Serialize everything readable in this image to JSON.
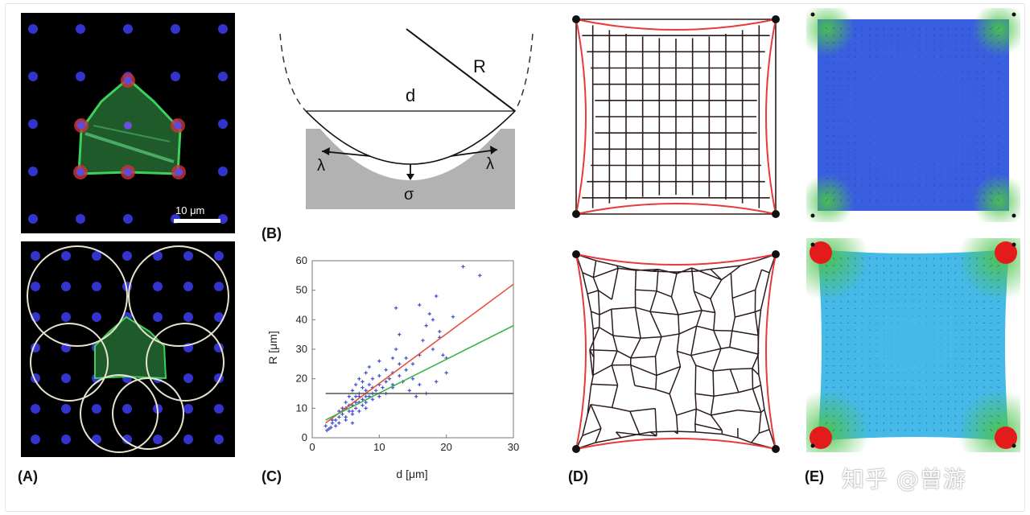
{
  "figure": {
    "panel_labels": [
      "(A)",
      "(B)",
      "(C)",
      "(D)",
      "(E)"
    ],
    "panel_a": {
      "scale_bar_text": "10 μm"
    },
    "panel_b": {
      "labels": {
        "R": "R",
        "d": "d",
        "lambda_left": "λ",
        "lambda_right": "λ",
        "sigma": "σ"
      }
    },
    "watermark": "知乎 @曾游"
  },
  "chart_data": {
    "type": "scatter",
    "xlabel": "d [μm]",
    "ylabel": "R [μm]",
    "xlim": [
      0,
      30
    ],
    "ylim": [
      0,
      60
    ],
    "xticks": [
      0,
      10,
      20,
      30
    ],
    "yticks": [
      0,
      10,
      20,
      30,
      40,
      50,
      60
    ],
    "points": [
      [
        2,
        4
      ],
      [
        2.5,
        3
      ],
      [
        3,
        5
      ],
      [
        3,
        6
      ],
      [
        3.5,
        4
      ],
      [
        4,
        7
      ],
      [
        4,
        9
      ],
      [
        4.5,
        8
      ],
      [
        5,
        6
      ],
      [
        5,
        10
      ],
      [
        5,
        12
      ],
      [
        5.5,
        9
      ],
      [
        5.5,
        14
      ],
      [
        6,
        8
      ],
      [
        6,
        11
      ],
      [
        6,
        13
      ],
      [
        6,
        16
      ],
      [
        6.5,
        10
      ],
      [
        6.5,
        12
      ],
      [
        6.5,
        18
      ],
      [
        7,
        9
      ],
      [
        7,
        14
      ],
      [
        7,
        15
      ],
      [
        7,
        20
      ],
      [
        7.5,
        11
      ],
      [
        7.5,
        13
      ],
      [
        7.5,
        17
      ],
      [
        8,
        10
      ],
      [
        8,
        12
      ],
      [
        8,
        16
      ],
      [
        8,
        22
      ],
      [
        8.5,
        14
      ],
      [
        8.5,
        18
      ],
      [
        9,
        13
      ],
      [
        9,
        15
      ],
      [
        9,
        20
      ],
      [
        9.5,
        16
      ],
      [
        10,
        14
      ],
      [
        10,
        18
      ],
      [
        10,
        21
      ],
      [
        10.5,
        17
      ],
      [
        11,
        15
      ],
      [
        11,
        19
      ],
      [
        11,
        23
      ],
      [
        11.5,
        20
      ],
      [
        12,
        18
      ],
      [
        12,
        22
      ],
      [
        12,
        27
      ],
      [
        12.5,
        44
      ],
      [
        12.5,
        30
      ],
      [
        13,
        21
      ],
      [
        13,
        25
      ],
      [
        13,
        35
      ],
      [
        13.5,
        19
      ],
      [
        14,
        23
      ],
      [
        14,
        27
      ],
      [
        15,
        20
      ],
      [
        15,
        25
      ],
      [
        15.5,
        14
      ],
      [
        16,
        28
      ],
      [
        16,
        45
      ],
      [
        16.5,
        33
      ],
      [
        17,
        15
      ],
      [
        17,
        38
      ],
      [
        17.5,
        42
      ],
      [
        18,
        30
      ],
      [
        18,
        40
      ],
      [
        18.5,
        48
      ],
      [
        19,
        34
      ],
      [
        19,
        36
      ],
      [
        19.5,
        28
      ],
      [
        20,
        22
      ],
      [
        20,
        27
      ],
      [
        21,
        41
      ],
      [
        22.5,
        58
      ],
      [
        25,
        55
      ],
      [
        4,
        5
      ],
      [
        5,
        7
      ],
      [
        6,
        9
      ],
      [
        7,
        12
      ],
      [
        8,
        14
      ],
      [
        9,
        17
      ],
      [
        5.5,
        11
      ],
      [
        6.5,
        14
      ],
      [
        7.5,
        19
      ],
      [
        3.5,
        6
      ],
      [
        4.5,
        10
      ],
      [
        8.5,
        24
      ],
      [
        10,
        26
      ],
      [
        12,
        17
      ],
      [
        14.5,
        16
      ],
      [
        16,
        18
      ],
      [
        18.5,
        19
      ],
      [
        2.2,
        2.5
      ],
      [
        2.8,
        3.5
      ],
      [
        6,
        5
      ]
    ],
    "fits": [
      {
        "name": "red",
        "color": "#e5533d",
        "from": [
          2,
          5
        ],
        "to": [
          30,
          52
        ]
      },
      {
        "name": "green",
        "color": "#3cb44b",
        "from": [
          2,
          6
        ],
        "to": [
          30,
          38
        ]
      },
      {
        "name": "black",
        "color": "#555555",
        "from": [
          2,
          15
        ],
        "to": [
          30,
          15
        ]
      }
    ],
    "point_color": "#3f4fd1"
  },
  "colors": {
    "cell_green": "#3ed05a",
    "nucleus_blue": "#3d3df0",
    "mesh_red": "#e83a3a",
    "mesh_dark": "#2b1a1a",
    "field_blue": "#3a5ee0",
    "field_cyan": "#45b9e8",
    "hot_green": "#4cc34c",
    "hot_red": "#e31b1b"
  }
}
